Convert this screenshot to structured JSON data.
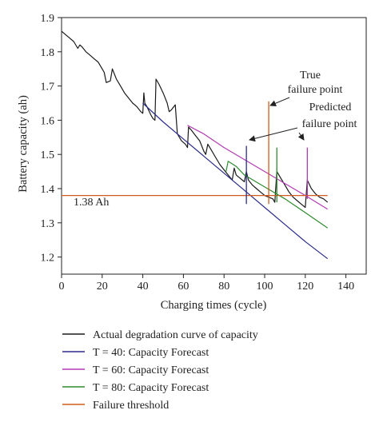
{
  "chart_data": {
    "type": "line",
    "title": "",
    "xlabel": "Charging times (cycle)",
    "ylabel": "Battery capacity (ah)",
    "xlim": [
      0,
      150
    ],
    "ylim": [
      1.15,
      1.9
    ],
    "xticks": [
      0,
      20,
      40,
      60,
      80,
      100,
      120,
      140
    ],
    "xtick_labels": [
      "0",
      "20",
      "40",
      "60",
      "80",
      "100",
      "120",
      "140"
    ],
    "yticks": [
      1.2,
      1.3,
      1.4,
      1.5,
      1.6,
      1.7,
      1.8,
      1.9
    ],
    "ytick_labels": [
      "1.2",
      "1.3",
      "1.4",
      "1.5",
      "1.6",
      "1.7",
      "1.8",
      "1.9"
    ],
    "grid": false,
    "legend_position": "below",
    "series": [
      {
        "name": "Actual degradation curve of capacity",
        "color": "#1a1a1a",
        "points": [
          [
            0,
            1.86
          ],
          [
            2,
            1.85
          ],
          [
            4,
            1.84
          ],
          [
            6,
            1.83
          ],
          [
            8,
            1.81
          ],
          [
            9,
            1.82
          ],
          [
            10,
            1.815
          ],
          [
            12,
            1.8
          ],
          [
            14,
            1.79
          ],
          [
            16,
            1.78
          ],
          [
            18,
            1.77
          ],
          [
            19,
            1.76
          ],
          [
            20,
            1.75
          ],
          [
            21,
            1.74
          ],
          [
            22,
            1.71
          ],
          [
            24,
            1.715
          ],
          [
            25,
            1.75
          ],
          [
            27,
            1.72
          ],
          [
            29,
            1.7
          ],
          [
            31,
            1.68
          ],
          [
            33,
            1.665
          ],
          [
            35,
            1.65
          ],
          [
            37,
            1.64
          ],
          [
            39,
            1.625
          ],
          [
            40,
            1.62
          ],
          [
            40.5,
            1.68
          ],
          [
            41,
            1.65
          ],
          [
            42,
            1.64
          ],
          [
            44,
            1.615
          ],
          [
            45,
            1.605
          ],
          [
            46,
            1.6
          ],
          [
            46.5,
            1.72
          ],
          [
            48,
            1.705
          ],
          [
            50,
            1.68
          ],
          [
            52,
            1.65
          ],
          [
            53,
            1.625
          ],
          [
            54,
            1.63
          ],
          [
            56,
            1.645
          ],
          [
            57,
            1.56
          ],
          [
            59,
            1.54
          ],
          [
            61,
            1.53
          ],
          [
            62,
            1.52
          ],
          [
            62.5,
            1.58
          ],
          [
            64,
            1.57
          ],
          [
            66,
            1.555
          ],
          [
            68,
            1.54
          ],
          [
            70,
            1.51
          ],
          [
            71,
            1.5
          ],
          [
            72,
            1.53
          ],
          [
            74,
            1.51
          ],
          [
            76,
            1.49
          ],
          [
            78,
            1.47
          ],
          [
            80,
            1.455
          ],
          [
            82,
            1.44
          ],
          [
            84,
            1.425
          ],
          [
            85,
            1.46
          ],
          [
            86,
            1.44
          ],
          [
            88,
            1.43
          ],
          [
            90,
            1.42
          ],
          [
            91,
            1.45
          ],
          [
            92,
            1.425
          ],
          [
            94,
            1.41
          ],
          [
            96,
            1.4
          ],
          [
            98,
            1.39
          ],
          [
            100,
            1.38
          ],
          [
            102,
            1.375
          ],
          [
            104,
            1.37
          ],
          [
            105,
            1.36
          ],
          [
            106,
            1.45
          ],
          [
            108,
            1.43
          ],
          [
            110,
            1.41
          ],
          [
            112,
            1.39
          ],
          [
            114,
            1.375
          ],
          [
            116,
            1.365
          ],
          [
            118,
            1.355
          ],
          [
            120,
            1.345
          ],
          [
            121,
            1.425
          ],
          [
            123,
            1.4
          ],
          [
            125,
            1.385
          ],
          [
            127,
            1.375
          ],
          [
            129,
            1.37
          ],
          [
            131,
            1.36
          ]
        ]
      },
      {
        "name": "T = 40: Capacity Forecast",
        "color": "#2b2b8a",
        "points": [
          [
            40,
            1.65
          ],
          [
            50,
            1.595
          ],
          [
            60,
            1.545
          ],
          [
            70,
            1.495
          ],
          [
            80,
            1.445
          ],
          [
            90,
            1.395
          ],
          [
            100,
            1.345
          ],
          [
            110,
            1.295
          ],
          [
            120,
            1.245
          ],
          [
            131,
            1.195
          ]
        ]
      },
      {
        "name": "T = 60: Capacity Forecast",
        "color": "#b33cb3",
        "points": [
          [
            62,
            1.585
          ],
          [
            70,
            1.56
          ],
          [
            80,
            1.52
          ],
          [
            90,
            1.485
          ],
          [
            100,
            1.45
          ],
          [
            110,
            1.415
          ],
          [
            120,
            1.38
          ],
          [
            131,
            1.34
          ]
        ]
      },
      {
        "name": "T = 80: Capacity Forecast",
        "color": "#2e8b2e",
        "points": [
          [
            81,
            1.45
          ],
          [
            82,
            1.48
          ],
          [
            86,
            1.465
          ],
          [
            90,
            1.44
          ],
          [
            100,
            1.405
          ],
          [
            110,
            1.37
          ],
          [
            120,
            1.33
          ],
          [
            131,
            1.285
          ]
        ]
      },
      {
        "name": "Failure threshold",
        "color": "#d05a1f",
        "points": [
          [
            0,
            1.38
          ],
          [
            131,
            1.38
          ]
        ]
      }
    ],
    "prediction_markers": [
      {
        "x": 91,
        "y0": 1.355,
        "y1": 1.525,
        "color": "#2b2b8a"
      },
      {
        "x": 106,
        "y0": 1.36,
        "y1": 1.52,
        "color": "#2e8b2e"
      },
      {
        "x": 121,
        "y0": 1.37,
        "y1": 1.52,
        "color": "#b33cb3"
      }
    ],
    "true_failure_marker": {
      "x": 102,
      "y0": 1.355,
      "y1": 1.655,
      "color": "#d05a1f"
    },
    "annotations": {
      "threshold_label": "1.38 Ah",
      "true_failure_line1": "True",
      "true_failure_line2": "failure point",
      "predicted_line1": "Predicted",
      "predicted_line2": "failure point"
    }
  }
}
